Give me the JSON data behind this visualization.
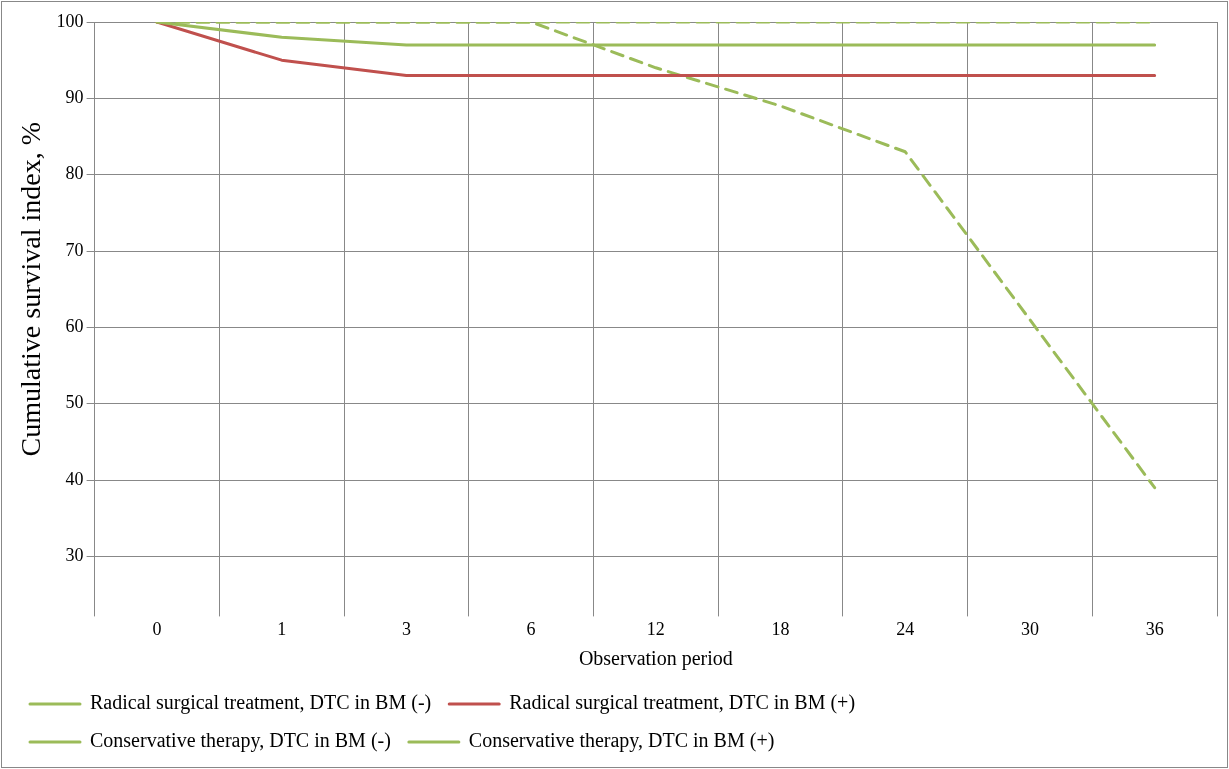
{
  "chart_data": {
    "type": "line",
    "xlabel": "Observation period",
    "ylabel": "Cumulative survival index, %",
    "categories": [
      "0",
      "1",
      "3",
      "6",
      "12",
      "18",
      "24",
      "30",
      "36"
    ],
    "series": [
      {
        "name": "Radical surgical treatment, DTC in BM (-)",
        "color": "#9bbb59",
        "values": [
          100,
          98,
          97,
          97,
          97,
          97,
          97,
          97,
          97
        ]
      },
      {
        "name": "Radical surgical treatment, DTC in BM (+)",
        "color": "#c0504d",
        "values": [
          100,
          95,
          93,
          93,
          93,
          93,
          93,
          93,
          93
        ]
      },
      {
        "name": "Conservative therapy, DTC in BM (-)",
        "color": "#9bbb59",
        "line_style": "dashed",
        "values": [
          100,
          100,
          100,
          100,
          100,
          100,
          100,
          100,
          100
        ]
      },
      {
        "name": "Conservative therapy, DTC in BM (+)",
        "color": "#9bbb59",
        "line_style": "dashed",
        "values": [
          100,
          100,
          100,
          100,
          94,
          89,
          83,
          61,
          39
        ]
      }
    ],
    "ylim": [
      30,
      100
    ],
    "yticks": [
      30,
      40,
      50,
      60,
      70,
      80,
      90,
      100
    ],
    "grid": true,
    "legend": "bottom",
    "marker": "none",
    "line_style": "solid"
  }
}
